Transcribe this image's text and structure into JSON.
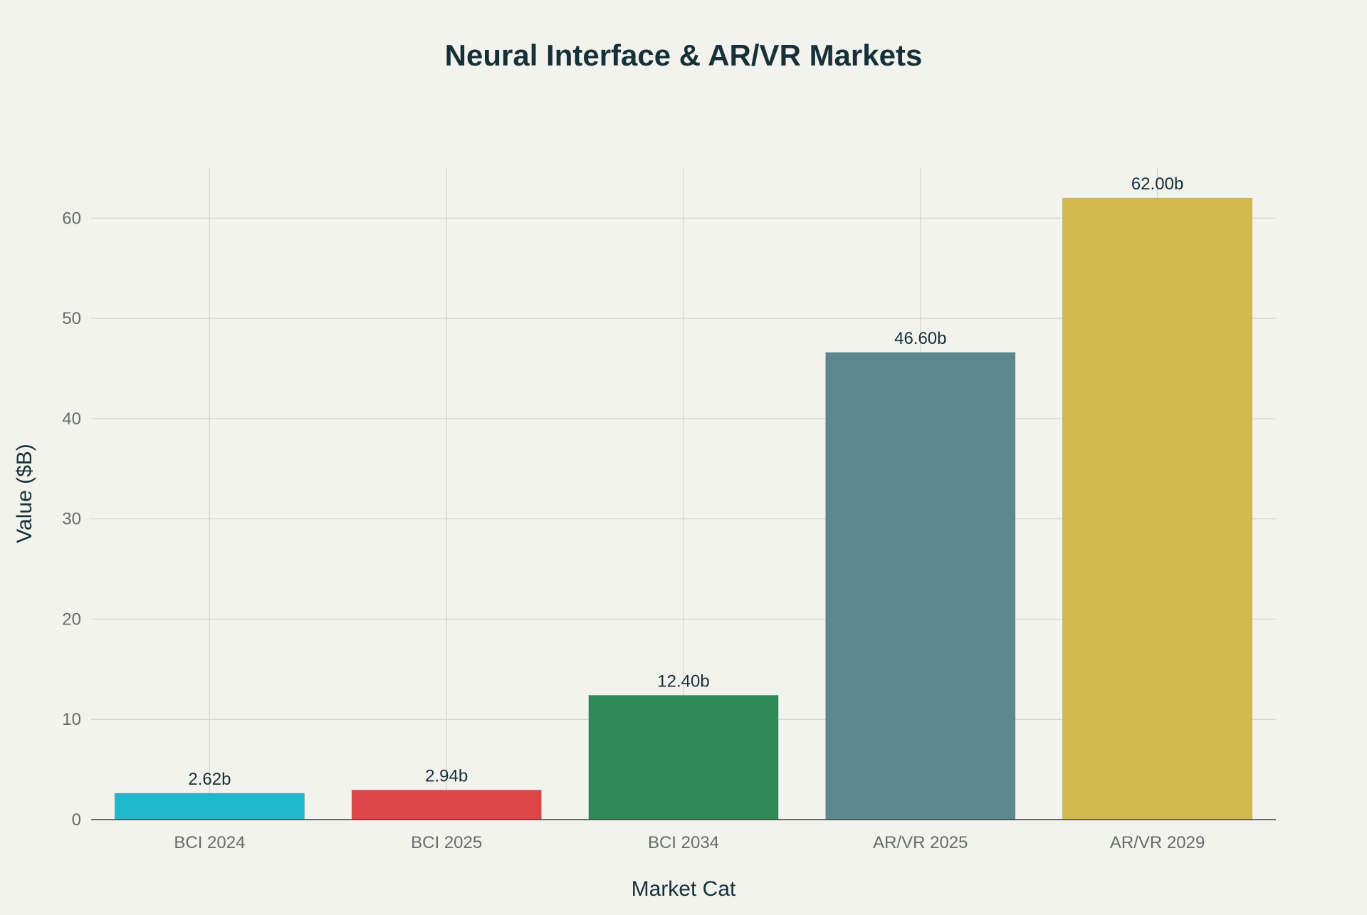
{
  "chart_data": {
    "type": "bar",
    "title": "Neural Interface & AR/VR Markets",
    "xlabel": "Market Cat",
    "ylabel": "Value ($B)",
    "categories": [
      "BCI 2024",
      "BCI 2025",
      "BCI 2034",
      "AR/VR 2025",
      "AR/VR 2029"
    ],
    "values": [
      2.62,
      2.94,
      12.4,
      46.6,
      62.0
    ],
    "data_labels": [
      "2.62b",
      "2.94b",
      "12.40b",
      "46.60b",
      "62.00b"
    ],
    "colors": [
      "#1fb8cd",
      "#db4545",
      "#2e8b57",
      "#5d878f",
      "#d2ba4c"
    ],
    "ylim": [
      0,
      65
    ],
    "yticks": [
      0,
      10,
      20,
      30,
      40,
      50,
      60
    ],
    "grid": true,
    "legend": "none"
  }
}
